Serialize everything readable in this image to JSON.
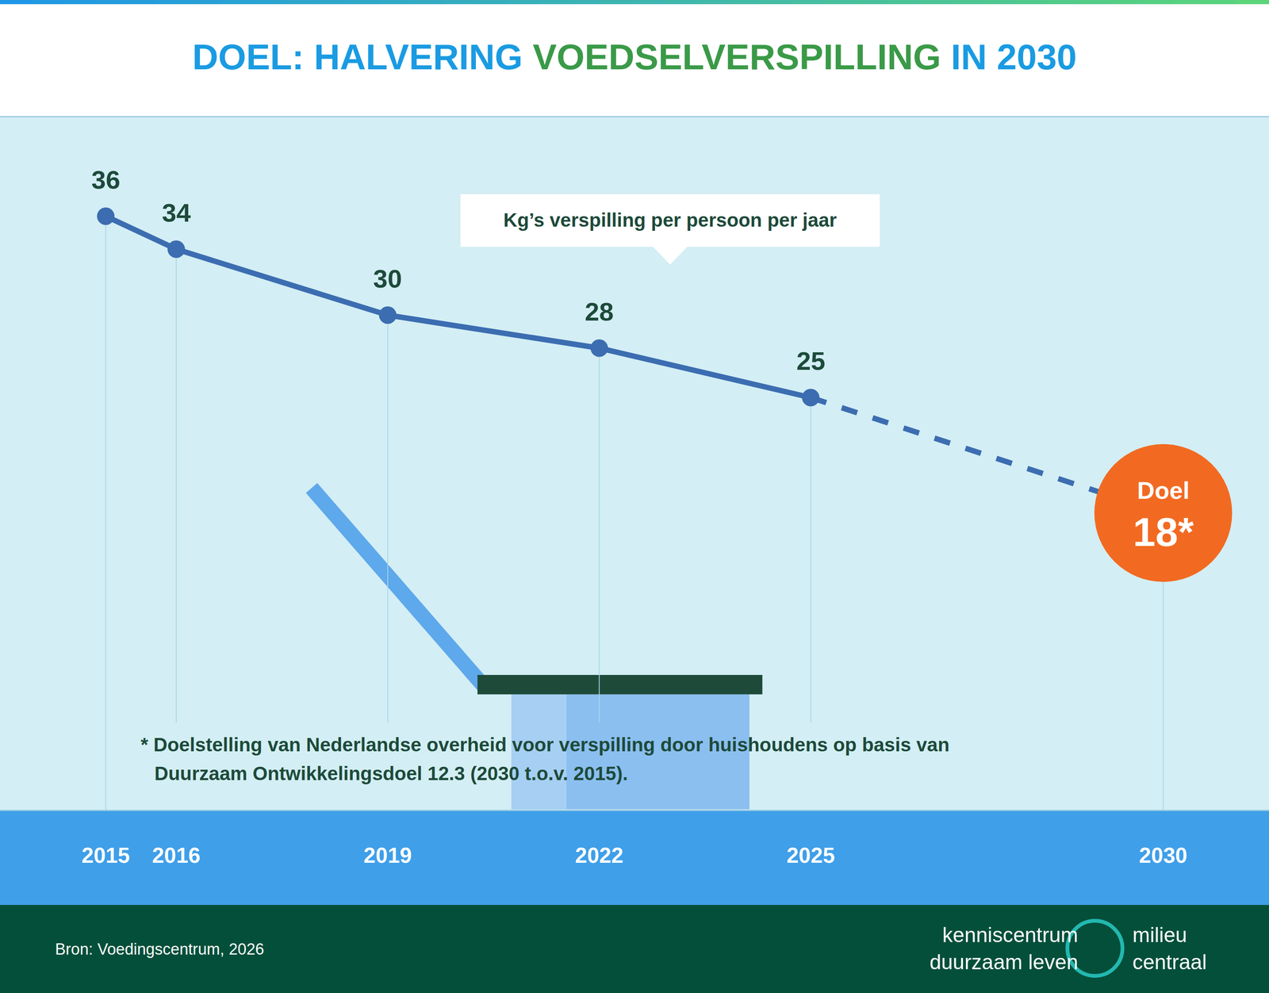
{
  "chart_data": {
    "type": "line",
    "title": "DOEL: HALVERING VOEDSELVERSPILLING IN 2030",
    "annotation": "Kg’s verspilling per persoon per jaar",
    "x": [
      2015,
      2016,
      2019,
      2022,
      2025
    ],
    "values": [
      36,
      34,
      30,
      28,
      25
    ],
    "color": "#3c6db1",
    "marker": "circle",
    "line_style": "solid",
    "data_labels": true,
    "target": {
      "x": 2030,
      "value": 18,
      "label": "Doel",
      "value_label": "18*",
      "color": "#f26a21",
      "line_style": "dash"
    },
    "xlim": [
      2013.5,
      2031.5
    ],
    "xticks": [
      2015,
      2016,
      2019,
      2022,
      2025,
      2030
    ],
    "ylim": [
      0,
      42
    ],
    "yticks": [],
    "tick_labels": "x",
    "grid": false,
    "footnote": [
      "* Doelstelling van Nederlandse overheid voor verspilling door huishoudens op basis van",
      "Duurzaam Ontwikkelingsdoel 12.3 (2030 t.o.v. 2015)."
    ],
    "source": "Bron: Voedingscentrum, 2026"
  },
  "logo": {
    "left": [
      "kenniscentrum",
      "duurzaam leven"
    ],
    "right": [
      "milieu",
      "centraal"
    ]
  }
}
